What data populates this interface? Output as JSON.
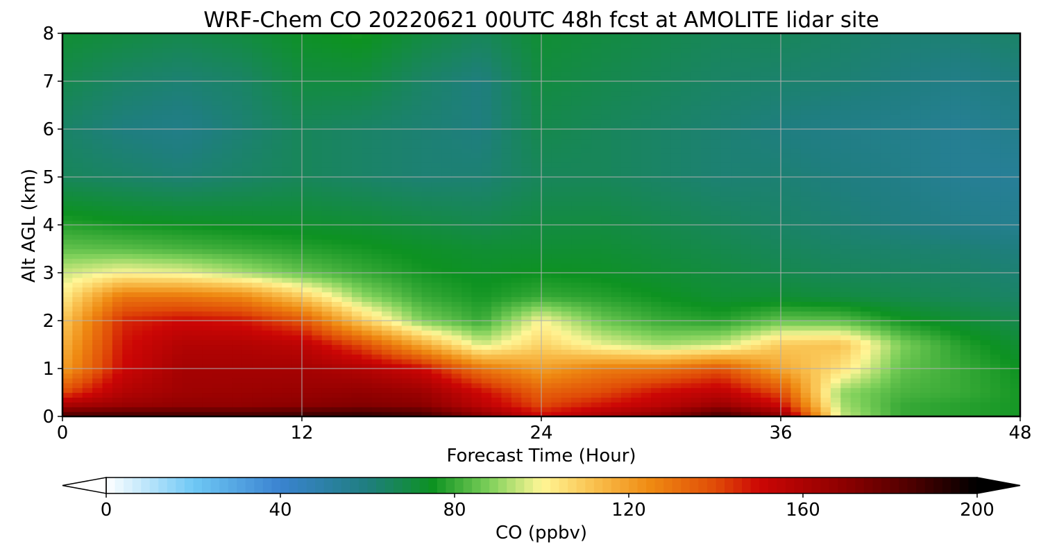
{
  "chart_data": {
    "type": "heatmap",
    "title": "WRF-Chem CO  20220621 00UTC 48h fcst at AMOLITE lidar site",
    "xlabel": "Forecast Time (Hour)",
    "ylabel": "Alt AGL (km)",
    "xlim": [
      0,
      48
    ],
    "ylim": [
      0,
      8
    ],
    "xticks": [
      0,
      12,
      24,
      36,
      48
    ],
    "yticks": [
      0,
      1,
      2,
      3,
      4,
      5,
      6,
      7,
      8
    ],
    "grid": true,
    "colorbar": {
      "label": "CO  (ppbv)",
      "range": [
        0,
        200
      ],
      "ticks": [
        0,
        40,
        80,
        120,
        160,
        200
      ],
      "extend": "both",
      "stops": [
        {
          "value": 0,
          "color": "#ffffff"
        },
        {
          "value": 20,
          "color": "#6fc8f5"
        },
        {
          "value": 40,
          "color": "#3a83d0"
        },
        {
          "value": 60,
          "color": "#1f7e7f"
        },
        {
          "value": 75,
          "color": "#0d9221"
        },
        {
          "value": 88,
          "color": "#7ed05a"
        },
        {
          "value": 100,
          "color": "#fff696"
        },
        {
          "value": 112,
          "color": "#f9c04e"
        },
        {
          "value": 125,
          "color": "#ef8a12"
        },
        {
          "value": 140,
          "color": "#e04b07"
        },
        {
          "value": 150,
          "color": "#cc0605"
        },
        {
          "value": 170,
          "color": "#8b0000"
        },
        {
          "value": 185,
          "color": "#4d0000"
        },
        {
          "value": 200,
          "color": "#000000"
        }
      ]
    },
    "x": [
      0,
      3,
      6,
      9,
      12,
      15,
      18,
      21,
      24,
      27,
      30,
      33,
      36,
      39,
      42,
      45,
      48
    ],
    "y": [
      0,
      0.25,
      0.5,
      1,
      1.5,
      2,
      2.5,
      3,
      3.5,
      4,
      5,
      6,
      7,
      8
    ],
    "z": [
      [
        186,
        188,
        188,
        188,
        190,
        192,
        188,
        170,
        150,
        160,
        170,
        188,
        170,
        95,
        80,
        78,
        76
      ],
      [
        160,
        165,
        168,
        168,
        170,
        172,
        170,
        155,
        140,
        148,
        155,
        165,
        150,
        92,
        80,
        78,
        76
      ],
      [
        140,
        158,
        164,
        165,
        166,
        168,
        165,
        150,
        135,
        140,
        150,
        155,
        140,
        90,
        82,
        80,
        76
      ],
      [
        120,
        150,
        162,
        162,
        162,
        158,
        150,
        130,
        120,
        128,
        130,
        138,
        118,
        105,
        85,
        80,
        75
      ],
      [
        115,
        148,
        158,
        158,
        155,
        140,
        118,
        96,
        108,
        98,
        92,
        95,
        110,
        112,
        88,
        78,
        72
      ],
      [
        110,
        145,
        150,
        148,
        138,
        110,
        88,
        80,
        100,
        86,
        80,
        78,
        85,
        84,
        76,
        72,
        68
      ],
      [
        102,
        130,
        130,
        126,
        110,
        90,
        80,
        76,
        80,
        78,
        75,
        72,
        72,
        70,
        68,
        66,
        64
      ],
      [
        95,
        100,
        98,
        92,
        85,
        80,
        76,
        74,
        75,
        74,
        72,
        70,
        68,
        66,
        65,
        64,
        62
      ],
      [
        85,
        84,
        82,
        80,
        78,
        76,
        74,
        72,
        72,
        72,
        70,
        68,
        66,
        64,
        63,
        62,
        60
      ],
      [
        78,
        76,
        75,
        74,
        73,
        72,
        70,
        68,
        70,
        70,
        68,
        66,
        64,
        62,
        60,
        58,
        56
      ],
      [
        66,
        64,
        62,
        64,
        66,
        64,
        62,
        62,
        66,
        66,
        64,
        62,
        62,
        60,
        58,
        55,
        54
      ],
      [
        64,
        60,
        58,
        62,
        66,
        64,
        62,
        60,
        68,
        66,
        64,
        62,
        60,
        58,
        57,
        55,
        57
      ],
      [
        68,
        64,
        62,
        64,
        70,
        70,
        64,
        60,
        70,
        68,
        66,
        64,
        63,
        62,
        60,
        58,
        60
      ],
      [
        72,
        70,
        68,
        70,
        74,
        76,
        70,
        66,
        72,
        70,
        68,
        66,
        66,
        64,
        62,
        62,
        64
      ]
    ]
  }
}
